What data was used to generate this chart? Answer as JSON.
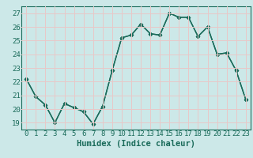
{
  "x": [
    0,
    1,
    2,
    3,
    4,
    5,
    6,
    7,
    8,
    9,
    10,
    11,
    12,
    13,
    14,
    15,
    16,
    17,
    18,
    19,
    20,
    21,
    22,
    23
  ],
  "y": [
    22.2,
    20.9,
    20.3,
    19.0,
    20.4,
    20.1,
    19.8,
    18.9,
    20.2,
    22.8,
    25.2,
    25.4,
    26.2,
    25.5,
    25.4,
    27.0,
    26.7,
    26.7,
    25.3,
    26.0,
    24.0,
    24.1,
    22.8,
    20.7
  ],
  "line_color": "#1a6b5a",
  "marker": "D",
  "markersize": 2.5,
  "linewidth": 1.0,
  "xlabel": "Humidex (Indice chaleur)",
  "ylim": [
    18.5,
    27.5
  ],
  "xlim": [
    -0.5,
    23.5
  ],
  "yticks": [
    19,
    20,
    21,
    22,
    23,
    24,
    25,
    26,
    27
  ],
  "xticks": [
    0,
    1,
    2,
    3,
    4,
    5,
    6,
    7,
    8,
    9,
    10,
    11,
    12,
    13,
    14,
    15,
    16,
    17,
    18,
    19,
    20,
    21,
    22,
    23
  ],
  "bg_color": "#cce8e8",
  "grid_color": "#e8c8c8",
  "tick_label_color": "#1a6b5a",
  "xlabel_color": "#1a6b5a",
  "xlabel_fontsize": 7.5,
  "tick_fontsize": 6.5
}
